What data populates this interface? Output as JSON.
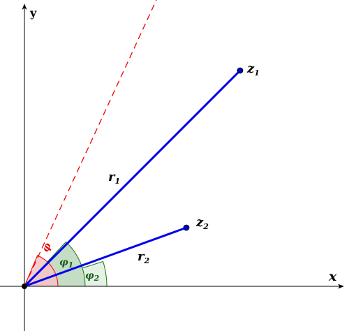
{
  "axes": {
    "x_label": "x",
    "y_label": "y"
  },
  "points": {
    "z1": {
      "base": "z",
      "sub": "1"
    },
    "z2": {
      "base": "z",
      "sub": "2"
    }
  },
  "moduli": {
    "r1": {
      "base": "r",
      "sub": "1"
    },
    "r2": {
      "base": "r",
      "sub": "2"
    }
  },
  "angles": {
    "phi": {
      "base": "φ"
    },
    "phi1": {
      "base": "φ",
      "sub": "1"
    },
    "phi2": {
      "base": "φ",
      "sub": "2"
    }
  },
  "colors": {
    "vector": "#0000ee",
    "point": "#0000cc",
    "sum_line": "#ee0000",
    "angle_green": "#1a7a1a",
    "angle_fill_light": "#e4f1e4",
    "angle_fill_dark": "#c5dcc5",
    "angle_red": "#ee0000",
    "angle_red_fill": "#f5c4c4",
    "axis": "#000000"
  }
}
